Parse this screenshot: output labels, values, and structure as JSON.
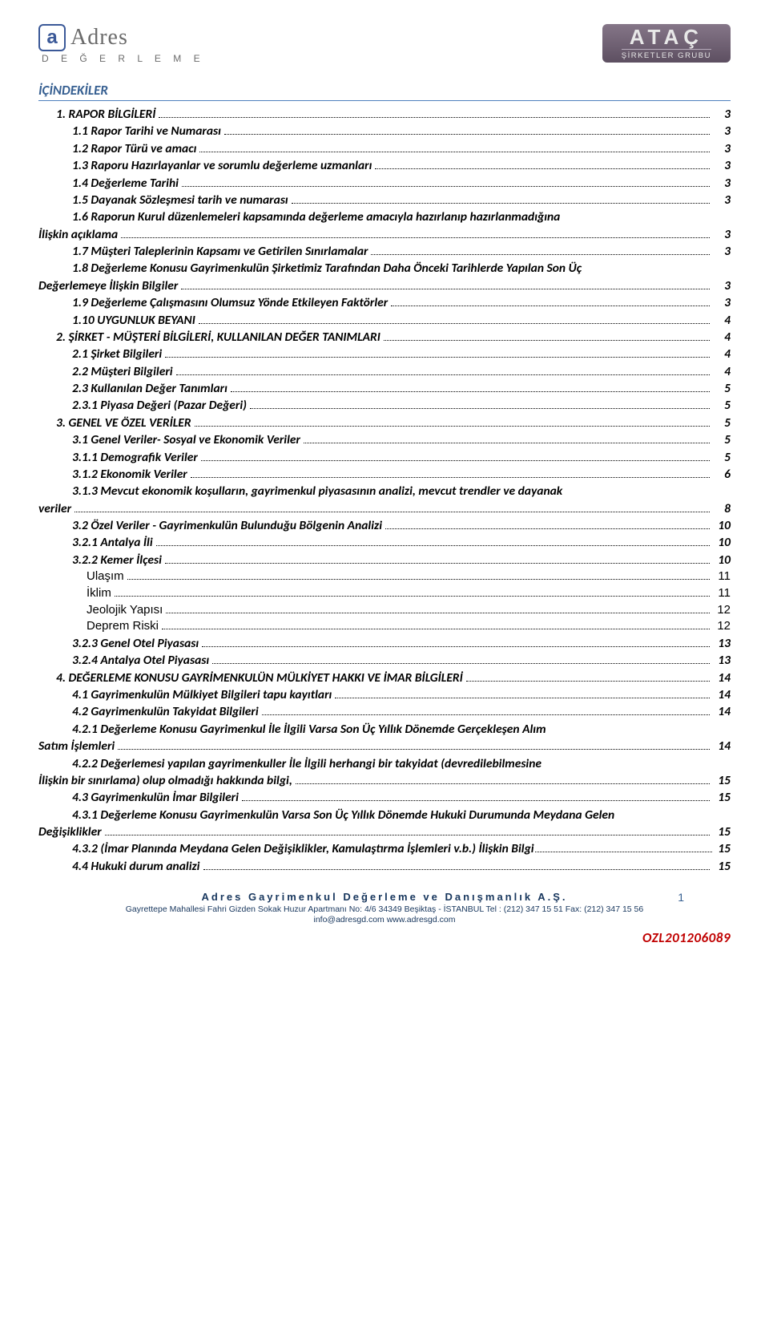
{
  "header": {
    "logo_left_name": "Adres",
    "logo_left_mark": "a",
    "logo_left_sub": "D E Ğ E R L E M E",
    "logo_right_main": "ATAÇ",
    "logo_right_sub": "ŞİRKETLER GRUBU"
  },
  "title": "İÇİNDEKİLER",
  "toc": [
    {
      "indent": 0,
      "style": "bi",
      "label": "1. RAPOR BİLGİLERİ",
      "page": "3"
    },
    {
      "indent": 1,
      "style": "bi",
      "label": "1.1 Rapor Tarihi ve Numarası",
      "page": "3"
    },
    {
      "indent": 1,
      "style": "bi",
      "label": "1.2 Rapor Türü ve amacı",
      "page": "3"
    },
    {
      "indent": 1,
      "style": "bi",
      "label": "1.3 Raporu Hazırlayanlar ve sorumlu değerleme uzmanları",
      "page": "3"
    },
    {
      "indent": 1,
      "style": "bi",
      "label": "1.4 Değerleme Tarihi",
      "page": "3"
    },
    {
      "indent": 1,
      "style": "bi",
      "label": "1.5 Dayanak Sözleşmesi tarih ve numarası",
      "page": "3"
    },
    {
      "indent": 1,
      "style": "bi",
      "label": "1.6 Raporun Kurul düzenlemeleri kapsamında değerleme amacıyla hazırlanıp hazırlanmadığına İlişkin açıklama",
      "page": "3",
      "wrap": true,
      "hang": true
    },
    {
      "indent": 1,
      "style": "bi",
      "label": "1.7 Müşteri Taleplerinin Kapsamı ve Getirilen Sınırlamalar",
      "page": "3"
    },
    {
      "indent": 1,
      "style": "bi",
      "label": "1.8 Değerleme Konusu Gayrimenkulün Şirketimiz Tarafından Daha Önceki Tarihlerde Yapılan Son Üç Değerlemeye İlişkin Bilgiler",
      "page": "3",
      "wrap": true,
      "hang": true
    },
    {
      "indent": 1,
      "style": "bi",
      "label": "1.9 Değerleme Çalışmasını Olumsuz Yönde Etkileyen Faktörler",
      "page": "3"
    },
    {
      "indent": 1,
      "style": "bi",
      "label": "1.10 UYGUNLUK BEYANI",
      "page": "4"
    },
    {
      "indent": 0,
      "style": "bi",
      "label": "2. ŞİRKET - MÜŞTERİ BİLGİLERİ, KULLANILAN DEĞER TANIMLARI",
      "page": "4"
    },
    {
      "indent": 1,
      "style": "bi",
      "label": "2.1 Şirket Bilgileri",
      "page": "4"
    },
    {
      "indent": 1,
      "style": "bi",
      "label": "2.2 Müşteri Bilgileri",
      "page": "4"
    },
    {
      "indent": 1,
      "style": "bi",
      "label": "2.3 Kullanılan Değer Tanımları",
      "page": "5"
    },
    {
      "indent": 1,
      "style": "bi",
      "label": "2.3.1 Piyasa Değeri  (Pazar Değeri)",
      "page": "5"
    },
    {
      "indent": 0,
      "style": "bi",
      "label": "3. GENEL VE ÖZEL VERİLER",
      "page": "5"
    },
    {
      "indent": 1,
      "style": "bi",
      "label": "3.1 Genel Veriler- Sosyal ve Ekonomik Veriler",
      "page": "5"
    },
    {
      "indent": 1,
      "style": "bi",
      "label": "3.1.1 Demografik Veriler",
      "page": "5"
    },
    {
      "indent": 1,
      "style": "bi",
      "label": "3.1.2 Ekonomik Veriler",
      "page": "6"
    },
    {
      "indent": 1,
      "style": "bi",
      "label": "3.1.3 Mevcut ekonomik koşulların, gayrimenkul piyasasının analizi, mevcut trendler ve dayanak veriler",
      "page": "8",
      "wrap": true,
      "hang": true
    },
    {
      "indent": 1,
      "style": "bi",
      "label": "3.2 Özel Veriler  - Gayrimenkulün Bulunduğu Bölgenin Analizi",
      "page": "10"
    },
    {
      "indent": 1,
      "style": "bi",
      "label": "3.2.1 Antalya İli",
      "page": "10"
    },
    {
      "indent": 1,
      "style": "bi",
      "label": "3.2.2 Kemer İlçesi",
      "page": "10"
    },
    {
      "indent": 2,
      "style": "plain",
      "label": "Ulaşım",
      "page": "11"
    },
    {
      "indent": 2,
      "style": "plain",
      "label": "İklim",
      "page": "11"
    },
    {
      "indent": 2,
      "style": "plain",
      "label": "Jeolojik Yapısı",
      "page": "12"
    },
    {
      "indent": 2,
      "style": "plain",
      "label": "Deprem Riski",
      "page": "12"
    },
    {
      "indent": 1,
      "style": "bi",
      "label": "3.2.3 Genel Otel Piyasası",
      "page": "13"
    },
    {
      "indent": 1,
      "style": "bi",
      "label": "3.2.4 Antalya Otel Piyasası",
      "page": "13"
    },
    {
      "indent": 0,
      "style": "bi",
      "label": "4. DEĞERLEME KONUSU GAYRİMENKULÜN MÜLKİYET HAKKI VE İMAR BİLGİLERİ",
      "page": "14"
    },
    {
      "indent": 1,
      "style": "bi",
      "label": "4.1 Gayrimenkulün Mülkiyet Bilgileri tapu kayıtları",
      "page": "14"
    },
    {
      "indent": 1,
      "style": "bi",
      "label": "4.2 Gayrimenkulün Takyidat Bilgileri",
      "page": "14"
    },
    {
      "indent": 1,
      "style": "bi",
      "label": "4.2.1 Değerleme Konusu Gayrimenkul İle İlgili Varsa Son Üç Yıllık Dönemde Gerçekleşen Alım Satım İşlemleri",
      "page": "14",
      "wrap": true,
      "hang": true
    },
    {
      "indent": 1,
      "style": "bi",
      "label": "4.2.2 Değerlemesi yapılan gayrimenkuller İle İlgili herhangi bir takyidat (devredilebilmesine İlişkin bir sınırlama) olup olmadığı hakkında bilgi,",
      "page": "15",
      "wrap": true,
      "hang": true
    },
    {
      "indent": 1,
      "style": "bi",
      "label": "4.3 Gayrimenkulün İmar Bilgileri",
      "page": "15"
    },
    {
      "indent": 1,
      "style": "bi",
      "label": "4.3.1 Değerleme Konusu Gayrimenkulün Varsa Son Üç Yıllık Dönemde Hukuki Durumunda Meydana Gelen Değişiklikler",
      "page": "15",
      "wrap": true,
      "hang": true
    },
    {
      "indent": 1,
      "style": "bi",
      "label": "4.3.2 (İmar Planında Meydana Gelen Değişiklikler, Kamulaştırma İşlemleri v.b.) İlişkin Bilgi",
      "page": "15",
      "tight": true
    },
    {
      "indent": 1,
      "style": "bi",
      "label": "4.4 Hukuki durum analizi",
      "page": "15"
    }
  ],
  "footer": {
    "company": "Adres Gayrimenkul Değerleme  ve  Danışmanlık  A.Ş.",
    "addr": "Gayrettepe Mahallesi Fahri Gizden Sokak Huzur Apartmanı No: 4/6 34349 Beşiktaş - İSTANBUL   Tel  :  (212) 347 15 51  Fax: (212) 347 15 56",
    "contact": "info@adresgd.com   www.adresgd.com",
    "pagenum": "1",
    "doc_id": "OZL201206089"
  },
  "colors": {
    "heading": "#365f91",
    "heading_rule": "#4f81bd",
    "footer": "#17365d",
    "doc_id": "#c00000",
    "logo_blue": "#3b5998",
    "logo_gray": "#6b6b6b",
    "atac_bg_top": "#857688",
    "atac_bg_bot": "#5d4f61"
  }
}
